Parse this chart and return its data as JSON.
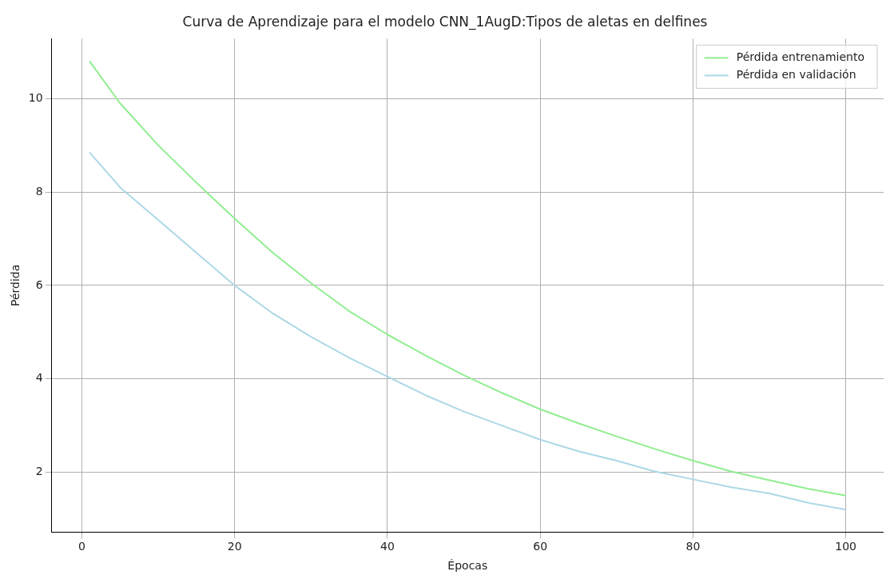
{
  "chart_data": {
    "type": "line",
    "title": "Curva de Aprendizaje para el modelo CNN_1AugD:Tipos de aletas en delfines",
    "xlabel": "Épocas",
    "ylabel": "Pérdida",
    "x": [
      1,
      5,
      10,
      15,
      20,
      25,
      30,
      35,
      40,
      45,
      50,
      55,
      60,
      65,
      70,
      75,
      80,
      85,
      90,
      95,
      100
    ],
    "series": [
      {
        "name": "Pérdida entrenamiento",
        "color": "#90ee90",
        "values": [
          10.8,
          9.9,
          9.0,
          8.2,
          7.43,
          6.7,
          6.05,
          5.45,
          4.95,
          4.5,
          4.08,
          3.7,
          3.35,
          3.05,
          2.77,
          2.5,
          2.25,
          2.02,
          1.83,
          1.65,
          1.5
        ]
      },
      {
        "name": "Pérdida en validación",
        "color": "#add8e6",
        "values": [
          8.85,
          8.1,
          7.4,
          6.7,
          6.0,
          5.4,
          4.9,
          4.45,
          4.05,
          3.65,
          3.3,
          3.0,
          2.7,
          2.45,
          2.25,
          2.02,
          1.85,
          1.68,
          1.55,
          1.35,
          1.2
        ]
      }
    ],
    "xlim": [
      -3.95,
      104.95
    ],
    "xticks": [
      0,
      20,
      40,
      60,
      80,
      100
    ],
    "ylim": [
      0.72,
      11.28
    ],
    "yticks": [
      2,
      4,
      6,
      8,
      10
    ],
    "grid": true,
    "legend": "top right",
    "marker": "none",
    "line_style": "solid"
  }
}
